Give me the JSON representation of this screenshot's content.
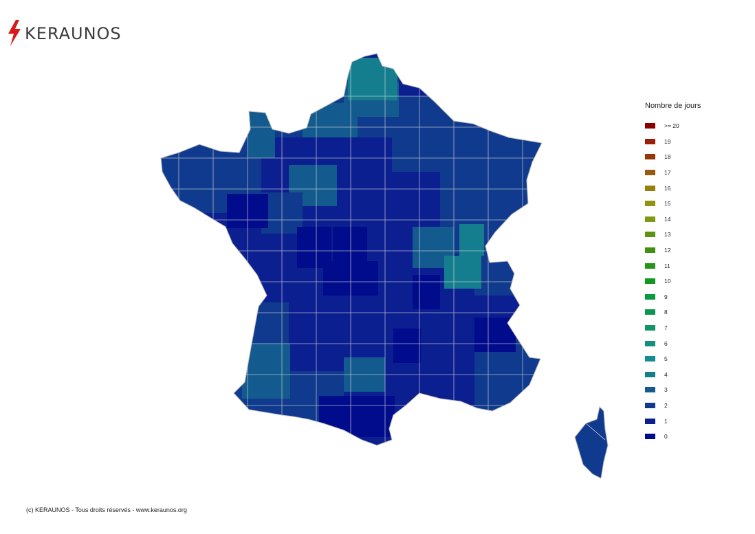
{
  "brand": {
    "name": "KERAUNOS",
    "accent": "#d7191c",
    "text_color": "#3b3b3b",
    "icon": "lightning-bolt-icon"
  },
  "map": {
    "type": "choropleth",
    "region": "France (départements)",
    "border_color": "#d9d9d9",
    "background": "#ffffff"
  },
  "legend": {
    "title": "Nombre de jours",
    "items": [
      {
        "label": ">= 20",
        "color": "#8c0000"
      },
      {
        "label": "19",
        "color": "#9a1f06"
      },
      {
        "label": "18",
        "color": "#973609"
      },
      {
        "label": "17",
        "color": "#985a0e"
      },
      {
        "label": "16",
        "color": "#958010"
      },
      {
        "label": "15",
        "color": "#919412"
      },
      {
        "label": "14",
        "color": "#7e9914"
      },
      {
        "label": "13",
        "color": "#5e9213"
      },
      {
        "label": "12",
        "color": "#419012"
      },
      {
        "label": "11",
        "color": "#27941a"
      },
      {
        "label": "10",
        "color": "#129722"
      },
      {
        "label": "9",
        "color": "#0d9a3e"
      },
      {
        "label": "8",
        "color": "#109551"
      },
      {
        "label": "7",
        "color": "#159467"
      },
      {
        "label": "6",
        "color": "#168f80"
      },
      {
        "label": "5",
        "color": "#148c90"
      },
      {
        "label": "4",
        "color": "#147e8f"
      },
      {
        "label": "3",
        "color": "#135b8e"
      },
      {
        "label": "2",
        "color": "#0f3a8d"
      },
      {
        "label": "1",
        "color": "#0c1f90"
      },
      {
        "label": "0",
        "color": "#000c8b"
      }
    ]
  },
  "footer": {
    "copyright": "(c) KERAUNOS - Tous droits réservés - www.keraunos.org"
  }
}
